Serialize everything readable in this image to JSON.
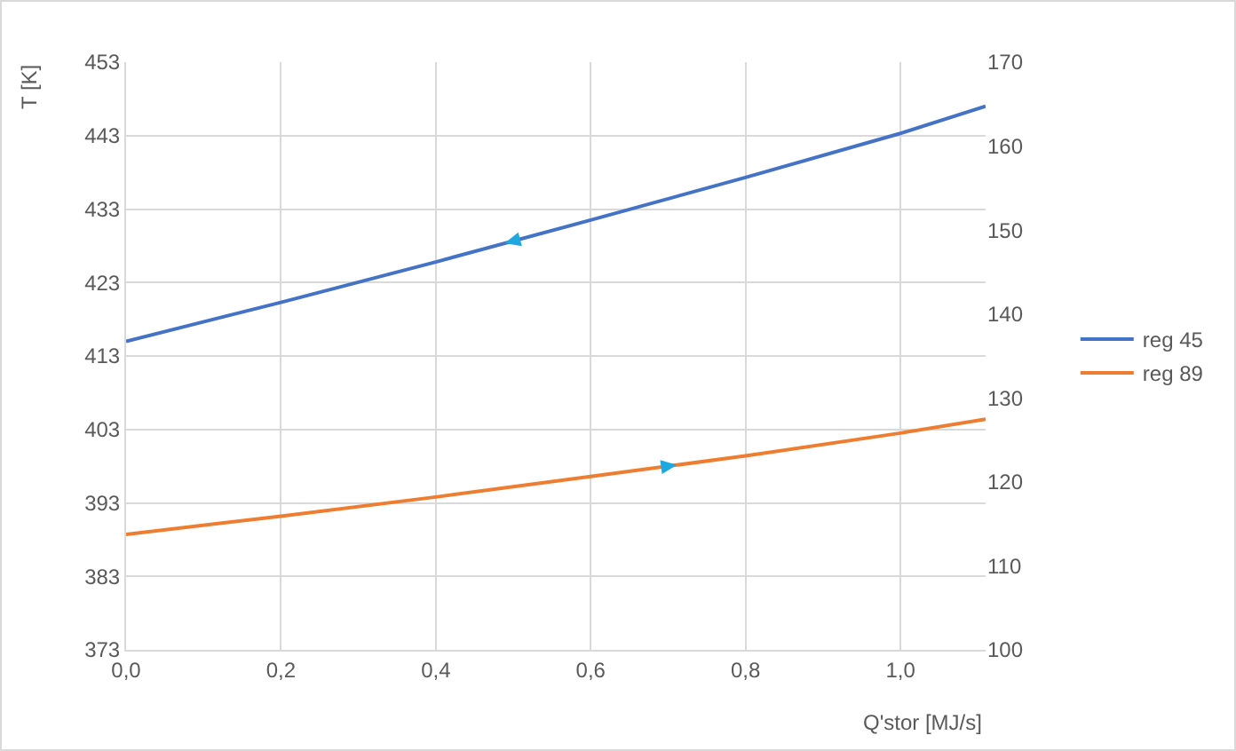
{
  "chart_data": {
    "type": "line",
    "xlabel": "Q'stor [MJ/s]",
    "ylabel": "T [K]",
    "x": [
      0,
      0.2,
      0.4,
      0.6,
      0.8,
      1.0,
      1.11
    ],
    "series": [
      {
        "name": "reg 45",
        "color": "#4472c4",
        "values": [
          415,
          420.3,
          425.8,
          431.5,
          437.3,
          443.3,
          447
        ]
      },
      {
        "name": "reg 89",
        "color": "#ed7d31",
        "values": [
          388.7,
          391.2,
          393.8,
          396.6,
          399.4,
          402.5,
          404.4
        ]
      }
    ],
    "xlim": [
      0,
      1.11
    ],
    "xticks": [
      {
        "value": 0,
        "label": "0,0"
      },
      {
        "value": 0.2,
        "label": "0,2"
      },
      {
        "value": 0.4,
        "label": "0,4"
      },
      {
        "value": 0.6,
        "label": "0,6"
      },
      {
        "value": 0.8,
        "label": "0,8"
      },
      {
        "value": 1.0,
        "label": "1,0"
      }
    ],
    "ylim": [
      373,
      453
    ],
    "yticks": [
      373,
      383,
      393,
      403,
      413,
      423,
      433,
      443,
      453
    ],
    "y2lim": [
      100,
      170
    ],
    "y2ticks": [
      100,
      110,
      120,
      130,
      140,
      150,
      160,
      170
    ],
    "grid": true,
    "legend": "right",
    "marker": "none",
    "line_style": "solid"
  }
}
